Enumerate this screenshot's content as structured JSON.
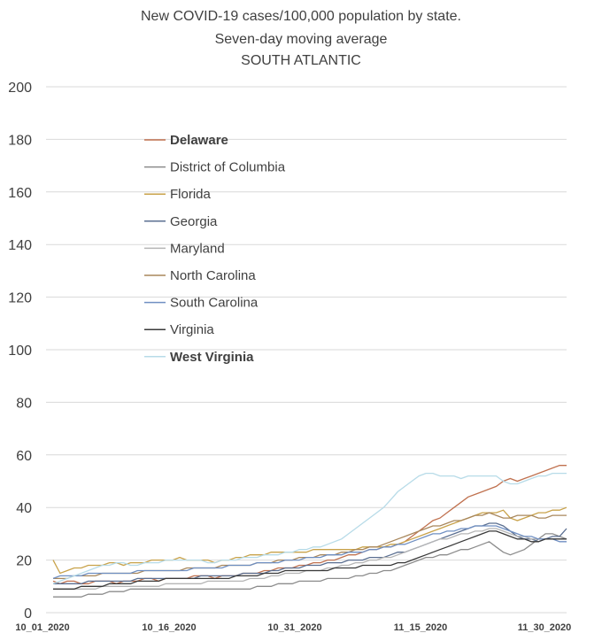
{
  "chart_data": {
    "type": "line",
    "title": "New COVID-19 cases/100,000 population by state.",
    "subtitle": "Seven-day moving average",
    "subtitle2": "SOUTH ATLANTIC",
    "xlabel": "",
    "ylabel": "",
    "ylim": [
      0,
      200
    ],
    "yticks": [
      0,
      20,
      40,
      60,
      80,
      100,
      120,
      140,
      160,
      180,
      200
    ],
    "xticks": [
      "10_01_2020",
      "10_16_2020",
      "10_31_2020",
      "11_15_2020",
      "11_30_2020"
    ],
    "grid": true,
    "legend_position": "upper-left",
    "series": [
      {
        "name": "Delaware",
        "color": "#c0714f",
        "bold": true,
        "values": [
          12,
          11,
          12,
          12,
          11,
          11,
          12,
          12,
          12,
          11,
          12,
          12,
          12,
          13,
          13,
          12,
          13,
          13,
          13,
          13,
          14,
          14,
          14,
          13,
          14,
          14,
          14,
          15,
          15,
          15,
          16,
          16,
          17,
          17,
          17,
          18,
          18,
          19,
          19,
          20,
          20,
          21,
          22,
          22,
          23,
          24,
          24,
          25,
          25,
          26,
          27,
          29,
          31,
          33,
          35,
          36,
          38,
          40,
          42,
          44,
          45,
          46,
          47,
          48,
          50,
          51,
          50,
          51,
          52,
          53,
          54,
          55,
          56,
          56
        ]
      },
      {
        "name": "District of Columbia",
        "color": "#8c8c8c",
        "bold": false,
        "values": [
          6,
          6,
          6,
          6,
          6,
          7,
          7,
          7,
          8,
          8,
          8,
          9,
          9,
          9,
          9,
          9,
          9,
          9,
          9,
          9,
          9,
          9,
          9,
          9,
          9,
          9,
          9,
          9,
          9,
          10,
          10,
          10,
          11,
          11,
          11,
          12,
          12,
          12,
          12,
          13,
          13,
          13,
          13,
          14,
          14,
          15,
          15,
          16,
          16,
          17,
          18,
          19,
          20,
          21,
          21,
          22,
          22,
          23,
          24,
          24,
          25,
          26,
          27,
          25,
          23,
          22,
          23,
          24,
          26,
          28,
          30,
          30,
          29,
          28
        ]
      },
      {
        "name": "Florida",
        "color": "#c8a24a",
        "bold": false,
        "values": [
          20,
          15,
          16,
          17,
          17,
          18,
          18,
          18,
          19,
          19,
          18,
          19,
          19,
          19,
          20,
          20,
          20,
          20,
          21,
          20,
          20,
          20,
          20,
          19,
          20,
          20,
          21,
          21,
          22,
          22,
          22,
          23,
          23,
          23,
          23,
          23,
          23,
          24,
          24,
          24,
          24,
          24,
          24,
          24,
          25,
          25,
          25,
          25,
          26,
          26,
          27,
          28,
          29,
          30,
          31,
          32,
          33,
          34,
          35,
          36,
          37,
          38,
          38,
          38,
          39,
          36,
          35,
          36,
          37,
          38,
          38,
          39,
          39,
          40
        ]
      },
      {
        "name": "Georgia",
        "color": "#5b6f91",
        "bold": false,
        "values": [
          11,
          11,
          11,
          11,
          11,
          12,
          12,
          12,
          12,
          12,
          12,
          12,
          13,
          13,
          13,
          13,
          13,
          13,
          13,
          13,
          13,
          14,
          14,
          14,
          14,
          14,
          14,
          15,
          15,
          15,
          15,
          16,
          16,
          17,
          17,
          17,
          18,
          18,
          18,
          19,
          19,
          19,
          20,
          20,
          20,
          21,
          21,
          21,
          22,
          23,
          23,
          24,
          25,
          26,
          27,
          28,
          29,
          30,
          31,
          32,
          33,
          33,
          34,
          34,
          33,
          31,
          29,
          28,
          28,
          27,
          28,
          29,
          29,
          32
        ]
      },
      {
        "name": "Maryland",
        "color": "#b5b5b5",
        "bold": false,
        "values": [
          9,
          9,
          9,
          9,
          9,
          9,
          9,
          10,
          10,
          10,
          10,
          10,
          10,
          10,
          10,
          10,
          11,
          11,
          11,
          11,
          11,
          11,
          12,
          12,
          12,
          12,
          12,
          12,
          13,
          13,
          13,
          14,
          14,
          15,
          15,
          15,
          16,
          16,
          16,
          17,
          17,
          18,
          18,
          19,
          19,
          20,
          20,
          21,
          21,
          22,
          23,
          24,
          25,
          26,
          27,
          28,
          28,
          29,
          30,
          30,
          31,
          31,
          32,
          32,
          31,
          30,
          29,
          29,
          28,
          28,
          28,
          28,
          28,
          28
        ]
      },
      {
        "name": "North Carolina",
        "color": "#a8875c",
        "bold": false,
        "values": [
          13,
          13,
          13,
          14,
          14,
          14,
          14,
          15,
          15,
          15,
          15,
          15,
          15,
          16,
          16,
          16,
          16,
          16,
          16,
          17,
          17,
          17,
          17,
          17,
          18,
          18,
          18,
          18,
          18,
          19,
          19,
          19,
          20,
          20,
          20,
          21,
          21,
          21,
          22,
          22,
          22,
          23,
          23,
          24,
          24,
          25,
          25,
          26,
          27,
          28,
          29,
          30,
          31,
          32,
          33,
          33,
          34,
          35,
          35,
          36,
          37,
          37,
          38,
          37,
          36,
          36,
          37,
          37,
          37,
          36,
          36,
          37,
          37,
          37
        ]
      },
      {
        "name": "South Carolina",
        "color": "#6f8fc2",
        "bold": false,
        "values": [
          13,
          14,
          14,
          14,
          14,
          15,
          15,
          15,
          15,
          15,
          15,
          15,
          16,
          16,
          16,
          16,
          16,
          16,
          16,
          16,
          17,
          17,
          17,
          17,
          17,
          18,
          18,
          18,
          18,
          19,
          19,
          19,
          19,
          20,
          20,
          20,
          21,
          21,
          21,
          22,
          22,
          22,
          23,
          23,
          23,
          24,
          24,
          25,
          25,
          26,
          26,
          27,
          28,
          29,
          30,
          30,
          31,
          31,
          32,
          32,
          33,
          33,
          33,
          33,
          32,
          31,
          30,
          29,
          29,
          28,
          28,
          28,
          27,
          27
        ]
      },
      {
        "name": "Virginia",
        "color": "#3a3a3a",
        "bold": false,
        "values": [
          9,
          9,
          9,
          9,
          10,
          10,
          10,
          10,
          11,
          11,
          11,
          11,
          12,
          12,
          12,
          12,
          13,
          13,
          13,
          13,
          13,
          13,
          13,
          13,
          13,
          13,
          14,
          14,
          14,
          14,
          15,
          15,
          15,
          16,
          16,
          16,
          16,
          16,
          16,
          16,
          17,
          17,
          17,
          17,
          18,
          18,
          18,
          18,
          18,
          19,
          19,
          20,
          21,
          22,
          23,
          24,
          25,
          26,
          27,
          28,
          29,
          30,
          31,
          31,
          30,
          29,
          28,
          28,
          27,
          27,
          28,
          28,
          28,
          28
        ]
      },
      {
        "name": "West Virginia",
        "color": "#b7dbe8",
        "bold": true,
        "values": [
          11,
          12,
          13,
          14,
          15,
          16,
          17,
          18,
          18,
          19,
          19,
          18,
          18,
          19,
          19,
          19,
          20,
          20,
          20,
          20,
          20,
          20,
          19,
          19,
          20,
          20,
          20,
          21,
          21,
          21,
          22,
          22,
          22,
          23,
          23,
          24,
          24,
          25,
          25,
          26,
          27,
          28,
          30,
          32,
          34,
          36,
          38,
          40,
          43,
          46,
          48,
          50,
          52,
          53,
          53,
          52,
          52,
          52,
          51,
          52,
          52,
          52,
          52,
          52,
          50,
          49,
          49,
          50,
          51,
          52,
          52,
          53,
          53,
          53
        ]
      }
    ]
  }
}
